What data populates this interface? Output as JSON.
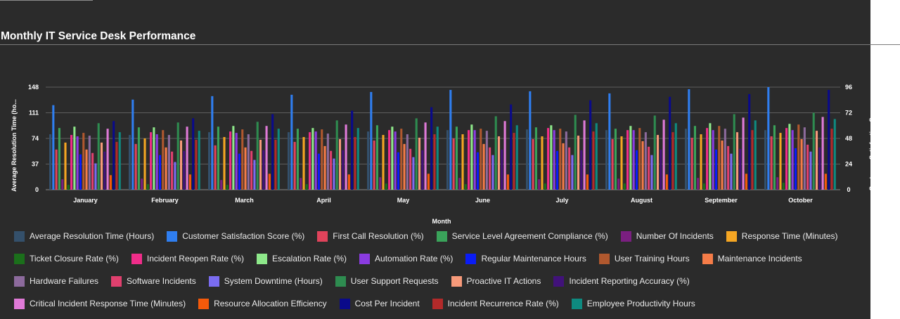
{
  "chart_data": {
    "type": "bar",
    "title": "Monthly IT Service Desk Performance",
    "xlabel": "Month",
    "ylabel_left": "Average Resolution Time (ho...",
    "ylabel_right": "Customer Satisfaction Score ...",
    "ylim_left": [
      0,
      148
    ],
    "yticks_left": [
      0,
      37,
      74,
      111,
      148
    ],
    "ylim_right": [
      0,
      96
    ],
    "yticks_right": [
      0,
      24,
      48,
      72,
      96
    ],
    "grid": true,
    "legend_position": "bottom",
    "categories": [
      "January",
      "February",
      "March",
      "April",
      "May",
      "June",
      "July",
      "August",
      "September",
      "October"
    ],
    "series": [
      {
        "name": "Average Resolution Time (Hours)",
        "color": "#34506b",
        "values": [
          80,
          79,
          83,
          83,
          84,
          86,
          87,
          86,
          88,
          86
        ]
      },
      {
        "name": "Customer Satisfaction Score (%)",
        "color": "#2f7ef0",
        "values": [
          122,
          130,
          135,
          137,
          141,
          144,
          142,
          139,
          145,
          148
        ]
      },
      {
        "name": "First Call Resolution (%)",
        "color": "#e0435b",
        "values": [
          58,
          66,
          64,
          69,
          71,
          74,
          73,
          73,
          75,
          77
        ]
      },
      {
        "name": "Service Level Agreement Compliance (%)",
        "color": "#3aa35a",
        "values": [
          89,
          90,
          91,
          88,
          93,
          91,
          90,
          88,
          92,
          93
        ]
      },
      {
        "name": "Number Of Incidents",
        "color": "#7a1f80",
        "values": [
          15,
          16,
          14,
          17,
          18,
          17,
          15,
          16,
          17,
          18
        ]
      },
      {
        "name": "Response Time (Minutes)",
        "color": "#f5a623",
        "values": [
          68,
          74,
          76,
          76,
          79,
          80,
          77,
          77,
          80,
          82
        ]
      },
      {
        "name": "Ticket Closure Rate (%)",
        "color": "#1b6f1b",
        "values": [
          7,
          8,
          7,
          8,
          9,
          8,
          9,
          9,
          9,
          10
        ]
      },
      {
        "name": "Incident Reopen Rate (%)",
        "color": "#f02d8a",
        "values": [
          79,
          83,
          84,
          83,
          86,
          86,
          89,
          86,
          89,
          89
        ]
      },
      {
        "name": "Escalation Rate (%)",
        "color": "#8ee88a",
        "values": [
          91,
          90,
          92,
          89,
          91,
          94,
          93,
          92,
          96,
          95
        ]
      },
      {
        "name": "Automation Rate (%)",
        "color": "#8a3be0",
        "values": [
          77,
          80,
          82,
          84,
          84,
          86,
          86,
          86,
          86,
          86
        ]
      },
      {
        "name": "Regular Maintenance Hours",
        "color": "#0a1cf5",
        "values": [
          51,
          50,
          52,
          52,
          54,
          54,
          56,
          57,
          58,
          60
        ]
      },
      {
        "name": "User Training Hours",
        "color": "#b0582e",
        "values": [
          82,
          86,
          87,
          87,
          88,
          88,
          88,
          89,
          92,
          94
        ]
      },
      {
        "name": "Maintenance Incidents",
        "color": "#f57c48",
        "values": [
          58,
          61,
          61,
          63,
          66,
          66,
          67,
          70,
          71,
          73
        ]
      },
      {
        "name": "Hardware Failures",
        "color": "#8c6a9c",
        "values": [
          78,
          79,
          80,
          81,
          80,
          85,
          84,
          83,
          88,
          90
        ]
      },
      {
        "name": "Software Incidents",
        "color": "#e0406e",
        "values": [
          53,
          55,
          56,
          56,
          59,
          61,
          61,
          62,
          63,
          65
        ]
      },
      {
        "name": "System Downtime (Hours)",
        "color": "#7a6cf0",
        "values": [
          38,
          40,
          43,
          45,
          47,
          50,
          50,
          50,
          52,
          55
        ]
      },
      {
        "name": "User Support Requests",
        "color": "#2e8c50",
        "values": [
          96,
          97,
          98,
          100,
          103,
          106,
          108,
          107,
          109,
          111
        ]
      },
      {
        "name": "Proactive IT Actions",
        "color": "#f79a7a",
        "values": [
          68,
          71,
          72,
          73,
          75,
          77,
          78,
          79,
          83,
          85
        ]
      },
      {
        "name": "Incident Reporting Accuracy (%)",
        "color": "#41127a",
        "values": [
          55,
          56,
          57,
          57,
          57,
          58,
          57,
          58,
          59,
          61
        ]
      },
      {
        "name": "Critical Incident Response Time (Minutes)",
        "color": "#e07ad8",
        "values": [
          88,
          91,
          92,
          94,
          97,
          99,
          100,
          101,
          104,
          105
        ]
      },
      {
        "name": "Resource Allocation Efficiency",
        "color": "#f55a0a",
        "values": [
          21,
          22,
          23,
          22,
          23,
          22,
          22,
          22,
          23,
          23
        ]
      },
      {
        "name": "Cost Per Incident",
        "color": "#0a0a8a",
        "values": [
          99,
          103,
          109,
          114,
          119,
          123,
          129,
          134,
          138,
          144
        ]
      },
      {
        "name": "Incident Recurrence Rate (%)",
        "color": "#b32a2a",
        "values": [
          69,
          72,
          72,
          76,
          80,
          82,
          84,
          83,
          86,
          88
        ]
      },
      {
        "name": "Employee Productivity Hours",
        "color": "#0e8a80",
        "values": [
          83,
          85,
          88,
          89,
          91,
          93,
          96,
          96,
          100,
          102
        ]
      }
    ]
  }
}
